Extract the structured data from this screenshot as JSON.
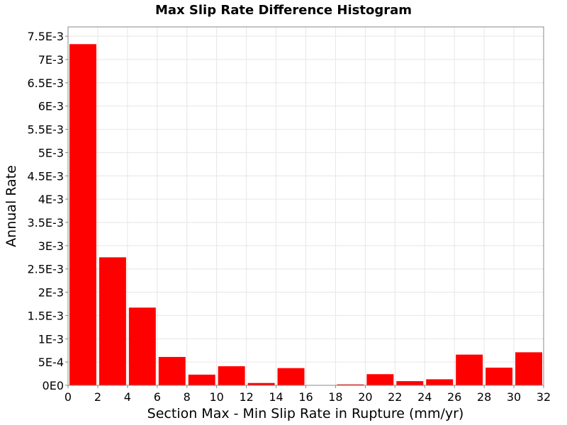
{
  "chart_data": {
    "type": "bar",
    "title": "Max Slip Rate Difference Histogram",
    "xlabel": "Section Max - Min Slip Rate in Rupture (mm/yr)",
    "ylabel": "Annual Rate",
    "xlim": [
      0,
      32
    ],
    "ylim": [
      0,
      0.0077
    ],
    "grid": true,
    "bar_color": "#ff0000",
    "bin_width": 2,
    "x": [
      1,
      3,
      5,
      7,
      9,
      11,
      13,
      15,
      17,
      19,
      21,
      23,
      25,
      27,
      29,
      31
    ],
    "values": [
      0.00733,
      0.00275,
      0.00167,
      0.00061,
      0.00023,
      0.00041,
      5e-05,
      0.00037,
      5e-06,
      2e-05,
      0.00024,
      9e-05,
      0.00013,
      0.00066,
      0.00038,
      0.00071
    ],
    "x_ticks": [
      {
        "value": 0,
        "label": "0"
      },
      {
        "value": 2,
        "label": "2"
      },
      {
        "value": 4,
        "label": "4"
      },
      {
        "value": 6,
        "label": "6"
      },
      {
        "value": 8,
        "label": "8"
      },
      {
        "value": 10,
        "label": "10"
      },
      {
        "value": 12,
        "label": "12"
      },
      {
        "value": 14,
        "label": "14"
      },
      {
        "value": 16,
        "label": "16"
      },
      {
        "value": 18,
        "label": "18"
      },
      {
        "value": 20,
        "label": "20"
      },
      {
        "value": 22,
        "label": "22"
      },
      {
        "value": 24,
        "label": "24"
      },
      {
        "value": 26,
        "label": "26"
      },
      {
        "value": 28,
        "label": "28"
      },
      {
        "value": 30,
        "label": "30"
      },
      {
        "value": 32,
        "label": "32"
      }
    ],
    "y_ticks": [
      {
        "value": 0,
        "label": "0E0"
      },
      {
        "value": 0.0005,
        "label": "5E-4"
      },
      {
        "value": 0.001,
        "label": "1E-3"
      },
      {
        "value": 0.0015,
        "label": "1.5E-3"
      },
      {
        "value": 0.002,
        "label": "2E-3"
      },
      {
        "value": 0.0025,
        "label": "2.5E-3"
      },
      {
        "value": 0.003,
        "label": "3E-3"
      },
      {
        "value": 0.0035,
        "label": "3.5E-3"
      },
      {
        "value": 0.004,
        "label": "4E-3"
      },
      {
        "value": 0.0045,
        "label": "4.5E-3"
      },
      {
        "value": 0.005,
        "label": "5E-3"
      },
      {
        "value": 0.0055,
        "label": "5.5E-3"
      },
      {
        "value": 0.006,
        "label": "6E-3"
      },
      {
        "value": 0.0065,
        "label": "6.5E-3"
      },
      {
        "value": 0.007,
        "label": "7E-3"
      },
      {
        "value": 0.0075,
        "label": "7.5E-3"
      }
    ]
  }
}
